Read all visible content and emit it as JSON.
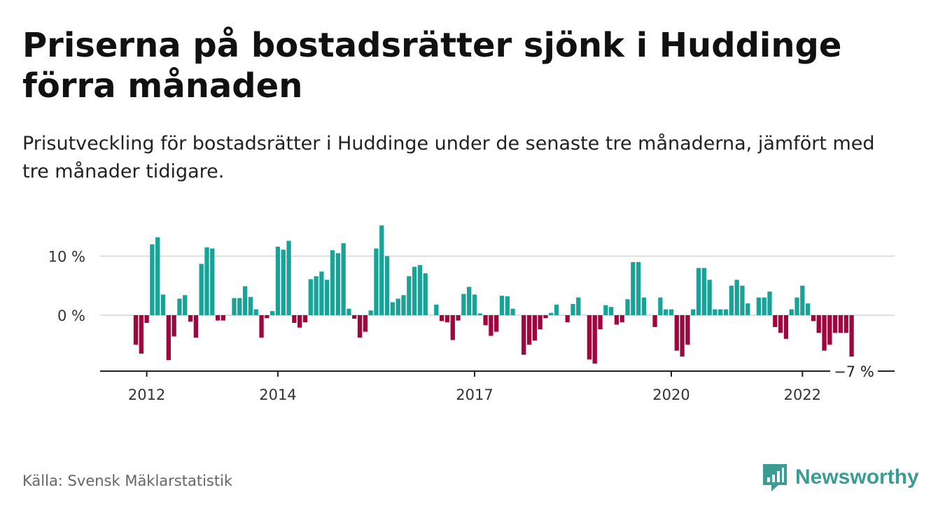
{
  "header": {
    "title": "Priserna på bostadsrätter sjönk i Huddinge förra månaden",
    "subtitle": "Prisutveckling för bostadsrätter i Huddinge under de senaste tre månaderna, jämfört med tre månader tidigare."
  },
  "footer": {
    "source": "Källa: Svensk Mäklarstatistik",
    "brand": "Newsworthy"
  },
  "colors": {
    "positive": "#17a398",
    "negative": "#a0063e",
    "brand": "#3a9c93"
  },
  "chart_data": {
    "type": "bar",
    "frequency": "monthly",
    "start": "2011-11",
    "unit": "%",
    "ylim": [
      -9,
      16
    ],
    "yticks": [
      {
        "value": 10,
        "label": "10 %"
      },
      {
        "value": 0,
        "label": "0 %"
      }
    ],
    "xticks": [
      {
        "month": "2012-01",
        "label": "2012"
      },
      {
        "month": "2014-01",
        "label": "2014"
      },
      {
        "month": "2017-01",
        "label": "2017"
      },
      {
        "month": "2020-01",
        "label": "2020"
      },
      {
        "month": "2022-01",
        "label": "2022"
      }
    ],
    "annotation": {
      "month": "2022-11",
      "value": -7,
      "label": "−7 %"
    },
    "grid": true,
    "values": [
      -5,
      -6.5,
      -1.3,
      12,
      13.2,
      3.5,
      -7.6,
      -3.6,
      2.8,
      3.4,
      -1.1,
      -3.8,
      8.7,
      11.5,
      11.3,
      -0.9,
      -0.9,
      0,
      2.9,
      2.9,
      4.9,
      3.1,
      1,
      -3.8,
      -0.5,
      0.7,
      11.6,
      11.1,
      12.6,
      -1.3,
      -2.1,
      -1.2,
      6.1,
      6.6,
      7.4,
      6,
      11,
      10.5,
      12.2,
      1.1,
      -0.6,
      -3.8,
      -2.8,
      0.8,
      11.3,
      15.2,
      10,
      2.2,
      2.8,
      3.4,
      6.6,
      8.2,
      8.5,
      7.1,
      0,
      1.8,
      -1,
      -1.2,
      -4.2,
      -0.9,
      3.6,
      4.8,
      3.5,
      0.3,
      -1.7,
      -3.5,
      -2.8,
      3.3,
      3.2,
      1.1,
      0,
      -6.7,
      -5,
      -4.3,
      -2.4,
      -0.5,
      0.4,
      1.8,
      0,
      -1.2,
      1.9,
      3,
      0,
      -7.5,
      -8.2,
      -2.4,
      1.7,
      1.4,
      -1.6,
      -1.2,
      2.7,
      9,
      9,
      3,
      0,
      -2,
      3,
      1,
      1,
      -6,
      -7,
      -5,
      1,
      8,
      8,
      6,
      1,
      1,
      1,
      5,
      6,
      5,
      2,
      0,
      3,
      3,
      4,
      -2,
      -3,
      -4,
      1,
      3,
      5,
      2,
      -1,
      -3,
      -6,
      -5,
      -3,
      -3,
      -3,
      -7
    ]
  }
}
